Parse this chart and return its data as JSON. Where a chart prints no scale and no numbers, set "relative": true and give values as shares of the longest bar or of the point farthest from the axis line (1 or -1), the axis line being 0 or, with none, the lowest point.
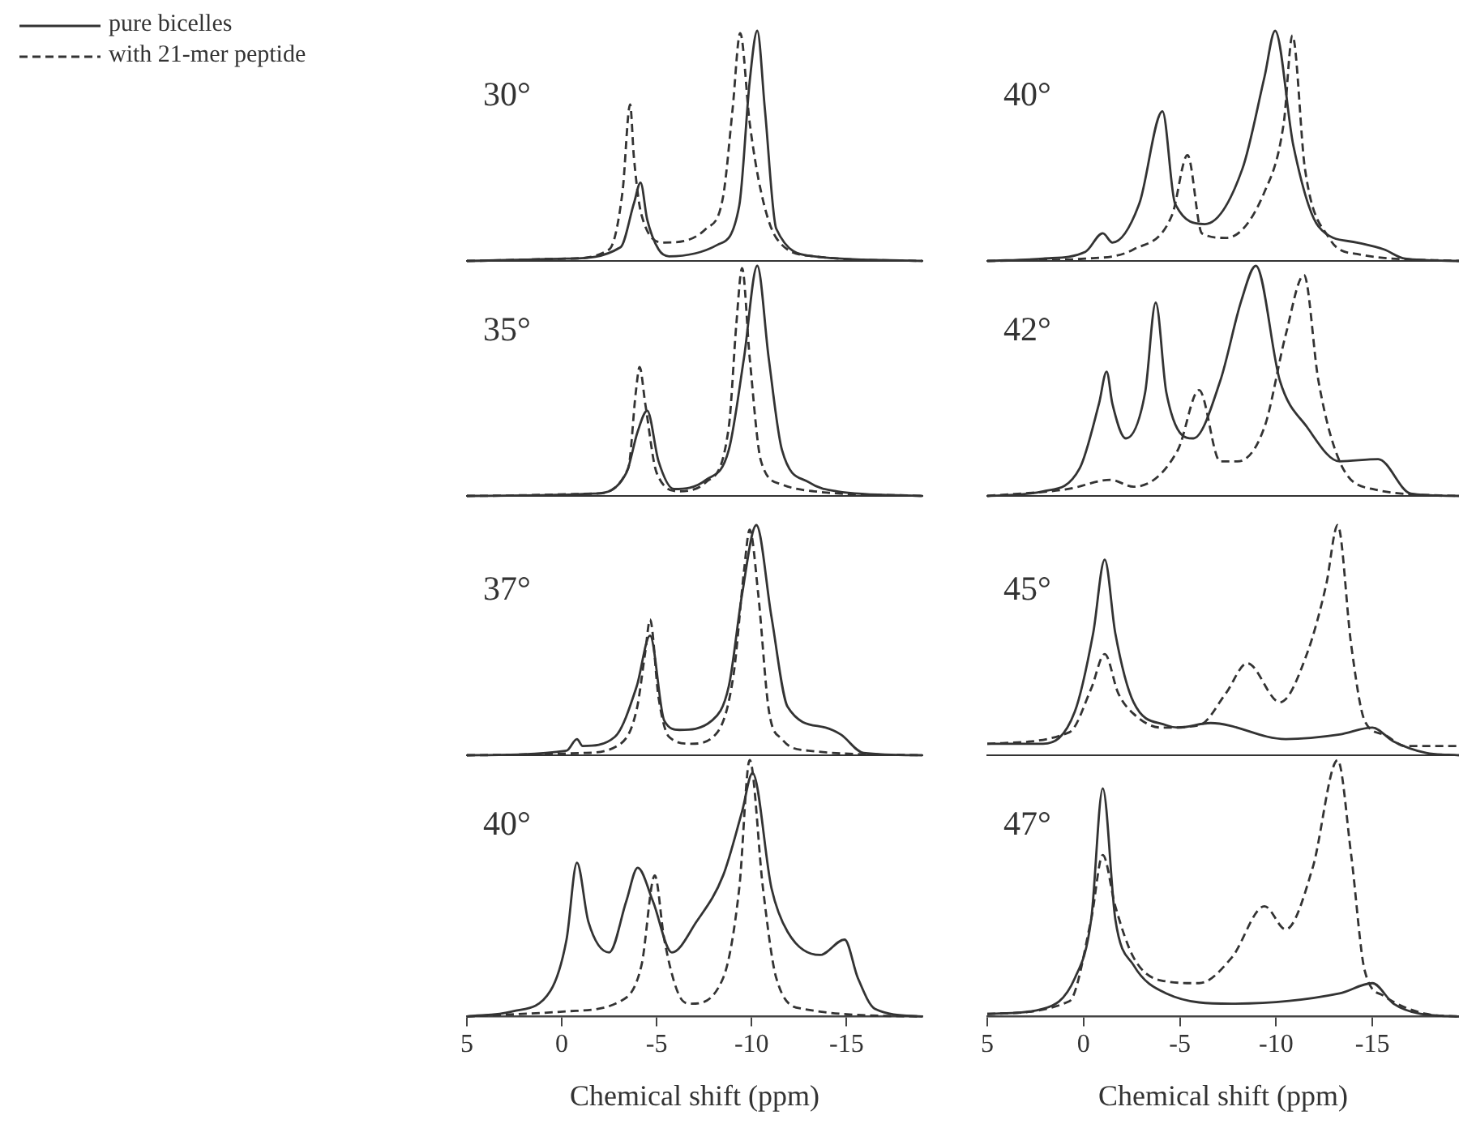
{
  "chart_data": [
    {
      "type": "line",
      "title": "30°",
      "relative": true,
      "marker": "none",
      "legend": "top left",
      "xlim": [
        5,
        -19
      ],
      "xticks": [
        5,
        0,
        -5,
        -10,
        -15
      ],
      "tick_labels": false,
      "series": [
        {
          "name": "pure bicelles",
          "color": "#333333",
          "line_style": "solid",
          "x": [
            5,
            -0.25,
            -3.1,
            -3.8,
            -4.15,
            -4.5,
            -5.1,
            -5.65,
            -8.2,
            -9.35,
            -9.9,
            -10.3,
            -10.7,
            -11.3,
            -13.3,
            -19
          ],
          "values": [
            0,
            0.01,
            0.06,
            0.25,
            0.34,
            0.18,
            0.05,
            0.02,
            0.07,
            0.24,
            0.78,
            1,
            0.66,
            0.14,
            0.02,
            0
          ]
        },
        {
          "name": "with 21-mer peptide",
          "color": "#333333",
          "line_style": "dashed",
          "x": [
            5,
            -0.25,
            -2.5,
            -3.2,
            -3.6,
            -3.8,
            -4.2,
            -5.4,
            -7.6,
            -8.5,
            -9.0,
            -9.4,
            -9.9,
            -10.5,
            -11.3,
            -13.3,
            -19
          ],
          "values": [
            0,
            0.01,
            0.05,
            0.3,
            0.68,
            0.45,
            0.2,
            0.08,
            0.14,
            0.28,
            0.66,
            0.99,
            0.6,
            0.3,
            0.1,
            0.02,
            0
          ]
        }
      ]
    },
    {
      "type": "line",
      "title": "40°",
      "relative": true,
      "marker": "none",
      "xlim": [
        5,
        -19.5
      ],
      "xticks": [
        5,
        0,
        -5,
        -10,
        -15
      ],
      "tick_labels": false,
      "series": [
        {
          "color": "#333333",
          "line_style": "solid",
          "x": [
            5,
            2.1,
            -0.1,
            -1.0,
            -1.5,
            -2.9,
            -4.1,
            -4.75,
            -6.3,
            -8.25,
            -9.4,
            -9.95,
            -10.9,
            -12.2,
            -14.2,
            -15.6,
            -16.7,
            -19.5
          ],
          "values": [
            0,
            0.01,
            0.04,
            0.12,
            0.08,
            0.25,
            0.65,
            0.25,
            0.16,
            0.4,
            0.8,
            1,
            0.5,
            0.15,
            0.08,
            0.05,
            0.01,
            0
          ]
        },
        {
          "color": "#333333",
          "line_style": "dashed",
          "x": [
            5,
            -0.1,
            -2.6,
            -4.6,
            -5.4,
            -6.15,
            -7.4,
            -9.4,
            -10.4,
            -10.85,
            -11.5,
            -12.75,
            -14.2,
            -19.5
          ],
          "values": [
            0,
            0.01,
            0.05,
            0.2,
            0.46,
            0.12,
            0.1,
            0.3,
            0.6,
            0.98,
            0.4,
            0.1,
            0.03,
            0
          ]
        }
      ]
    },
    {
      "type": "line",
      "title": "35°",
      "relative": true,
      "marker": "none",
      "xlim": [
        5,
        -19
      ],
      "xticks": [
        5,
        0,
        -5,
        -10,
        -15
      ],
      "tick_labels": false,
      "series": [
        {
          "color": "#333333",
          "line_style": "solid",
          "x": [
            5,
            -1.7,
            -3.4,
            -4.0,
            -4.5,
            -5.1,
            -5.9,
            -7.6,
            -8.8,
            -9.6,
            -10.3,
            -10.9,
            -11.6,
            -13,
            -14.5,
            -19
          ],
          "values": [
            0,
            0.01,
            0.1,
            0.28,
            0.37,
            0.15,
            0.03,
            0.07,
            0.2,
            0.6,
            1,
            0.6,
            0.2,
            0.06,
            0.02,
            0
          ]
        },
        {
          "color": "#333333",
          "line_style": "dashed",
          "x": [
            5,
            -1.7,
            -3.5,
            -3.9,
            -4.1,
            -4.4,
            -5.0,
            -6.2,
            -7.6,
            -8.8,
            -9.2,
            -9.5,
            -9.9,
            -10.5,
            -11.6,
            -13.3,
            -19
          ],
          "values": [
            0,
            0.01,
            0.12,
            0.45,
            0.56,
            0.4,
            0.1,
            0.02,
            0.06,
            0.3,
            0.75,
            0.99,
            0.6,
            0.15,
            0.05,
            0.02,
            0
          ]
        }
      ]
    },
    {
      "type": "line",
      "title": "42°",
      "relative": true,
      "marker": "none",
      "xlim": [
        5,
        -19.5
      ],
      "xticks": [
        5,
        0,
        -5,
        -10,
        -15
      ],
      "tick_labels": false,
      "series": [
        {
          "color": "#333333",
          "line_style": "solid",
          "x": [
            5,
            2.1,
            0.2,
            -0.8,
            -1.2,
            -1.5,
            -2.2,
            -3.2,
            -3.75,
            -4.3,
            -5.7,
            -7.1,
            -8.2,
            -8.95,
            -10.2,
            -11.6,
            -13.3,
            -15.3,
            -17.0,
            -19.5
          ],
          "values": [
            0,
            0.02,
            0.12,
            0.4,
            0.54,
            0.4,
            0.25,
            0.45,
            0.84,
            0.45,
            0.25,
            0.5,
            0.85,
            1,
            0.5,
            0.3,
            0.15,
            0.16,
            0.01,
            0
          ]
        },
        {
          "color": "#333333",
          "line_style": "dashed",
          "x": [
            5,
            0.8,
            -1.4,
            -2.6,
            -4.9,
            -6.0,
            -7.1,
            -8.0,
            -9.4,
            -10.5,
            -11.45,
            -12.2,
            -13.3,
            -15.0,
            -19.5
          ],
          "values": [
            0,
            0.03,
            0.07,
            0.04,
            0.2,
            0.46,
            0.15,
            0.15,
            0.3,
            0.7,
            0.96,
            0.5,
            0.15,
            0.03,
            0
          ]
        }
      ]
    },
    {
      "type": "line",
      "title": "37°",
      "relative": true,
      "marker": "none",
      "xlim": [
        5,
        -19
      ],
      "xticks": [
        5,
        0,
        -5,
        -10,
        -15
      ],
      "tick_labels": false,
      "series": [
        {
          "color": "#333333",
          "line_style": "solid",
          "x": [
            5,
            -0.25,
            -0.8,
            -1.1,
            -2.8,
            -3.95,
            -4.65,
            -5.4,
            -6.2,
            -7.9,
            -8.8,
            -9.5,
            -10.25,
            -11.05,
            -11.9,
            -13.9,
            -14.7,
            -15.9,
            -19
          ],
          "values": [
            0,
            0.02,
            0.07,
            0.04,
            0.08,
            0.3,
            0.52,
            0.15,
            0.11,
            0.15,
            0.3,
            0.7,
            1,
            0.6,
            0.21,
            0.12,
            0.09,
            0.01,
            0
          ]
        },
        {
          "color": "#333333",
          "line_style": "dashed",
          "x": [
            5,
            -1.1,
            -3.1,
            -3.95,
            -4.4,
            -4.65,
            -5.1,
            -5.65,
            -6.8,
            -8.2,
            -9.05,
            -9.6,
            -9.9,
            -10.35,
            -10.9,
            -11.6,
            -13,
            -19
          ],
          "values": [
            0,
            0.01,
            0.05,
            0.2,
            0.45,
            0.59,
            0.25,
            0.08,
            0.05,
            0.1,
            0.35,
            0.8,
            0.98,
            0.7,
            0.2,
            0.07,
            0.02,
            0
          ]
        }
      ]
    },
    {
      "type": "line",
      "title": "45°",
      "relative": true,
      "marker": "none",
      "xlim": [
        5,
        -19.5
      ],
      "xticks": [
        5,
        0,
        -5,
        -10,
        -15
      ],
      "tick_labels": false,
      "series": [
        {
          "color": "#333333",
          "line_style": "solid",
          "x": [
            5,
            2.1,
            0.45,
            -0.5,
            -1.1,
            -1.65,
            -2.6,
            -4.3,
            -4.9,
            -6.6,
            -10.5,
            -13.3,
            -15.0,
            -16.1,
            -17.8,
            -19.5
          ],
          "values": [
            0.05,
            0.05,
            0.19,
            0.53,
            0.85,
            0.53,
            0.23,
            0.13,
            0.12,
            0.14,
            0.07,
            0.09,
            0.12,
            0.06,
            0.01,
            0
          ]
        },
        {
          "color": "#333333",
          "line_style": "dashed",
          "x": [
            5,
            0.73,
            -0.4,
            -1.1,
            -1.8,
            -2.6,
            -4.05,
            -6.0,
            -7.4,
            -8.5,
            -10.2,
            -11.6,
            -12.6,
            -13.2,
            -13.9,
            -14.6,
            -15.6,
            -16.7,
            -19.5
          ],
          "values": [
            0.05,
            0.1,
            0.29,
            0.44,
            0.27,
            0.18,
            0.12,
            0.13,
            0.27,
            0.4,
            0.23,
            0.44,
            0.74,
            1,
            0.48,
            0.15,
            0.09,
            0.04,
            0.04
          ]
        }
      ]
    },
    {
      "type": "line",
      "title": "40°",
      "relative": true,
      "marker": "none",
      "xlim": [
        5,
        -19
      ],
      "xticks": [
        5,
        0,
        -5,
        -10,
        -15
      ],
      "tick_labels": "x",
      "xlabel": "Chemical shift (ppm)",
      "series": [
        {
          "color": "#333333",
          "line_style": "solid",
          "x": [
            5,
            2.6,
            0.6,
            -0.25,
            -0.8,
            -1.4,
            -2.5,
            -3.4,
            -4.0,
            -4.8,
            -5.8,
            -7.1,
            -8.5,
            -9.5,
            -10.05,
            -11.05,
            -11.9,
            -13.6,
            -14.9,
            -15.6,
            -16.5,
            -19
          ],
          "values": [
            0,
            0.02,
            0.1,
            0.3,
            0.6,
            0.37,
            0.25,
            0.45,
            0.58,
            0.45,
            0.25,
            0.37,
            0.55,
            0.8,
            0.95,
            0.5,
            0.33,
            0.24,
            0.3,
            0.15,
            0.03,
            0
          ]
        },
        {
          "color": "#333333",
          "line_style": "dashed",
          "x": [
            5,
            -0.25,
            -3.1,
            -4.2,
            -4.9,
            -5.4,
            -6.2,
            -6.8,
            -8.5,
            -9.35,
            -9.9,
            -10.6,
            -11.3,
            -12.7,
            -19
          ],
          "values": [
            0,
            0.02,
            0.06,
            0.2,
            0.55,
            0.3,
            0.08,
            0.05,
            0.15,
            0.5,
            1,
            0.5,
            0.15,
            0.03,
            0
          ]
        }
      ]
    },
    {
      "type": "line",
      "title": "47°",
      "relative": true,
      "marker": "none",
      "xlim": [
        5,
        -19.5
      ],
      "xticks": [
        5,
        0,
        -5,
        -10,
        -15
      ],
      "tick_labels": "x",
      "xlabel": "Chemical shift (ppm)",
      "series": [
        {
          "color": "#333333",
          "line_style": "solid",
          "x": [
            5,
            2.1,
            0.45,
            -0.4,
            -1.0,
            -1.65,
            -2.6,
            -4.3,
            -7.7,
            -13.3,
            -15.0,
            -16.1,
            -17.5,
            -19.5
          ],
          "values": [
            0.01,
            0.03,
            0.15,
            0.38,
            0.89,
            0.38,
            0.2,
            0.09,
            0.05,
            0.09,
            0.13,
            0.05,
            0.01,
            0
          ]
        },
        {
          "color": "#333333",
          "line_style": "dashed",
          "x": [
            5,
            0.73,
            -0.4,
            -1.0,
            -1.65,
            -2.6,
            -4.05,
            -6.0,
            -7.7,
            -9.4,
            -10.5,
            -11.9,
            -13.2,
            -13.9,
            -14.6,
            -15.6,
            -17.8,
            -19.5
          ],
          "values": [
            0.01,
            0.06,
            0.38,
            0.63,
            0.43,
            0.23,
            0.14,
            0.13,
            0.23,
            0.43,
            0.34,
            0.58,
            1,
            0.63,
            0.18,
            0.08,
            0.01,
            0
          ]
        }
      ]
    }
  ]
}
